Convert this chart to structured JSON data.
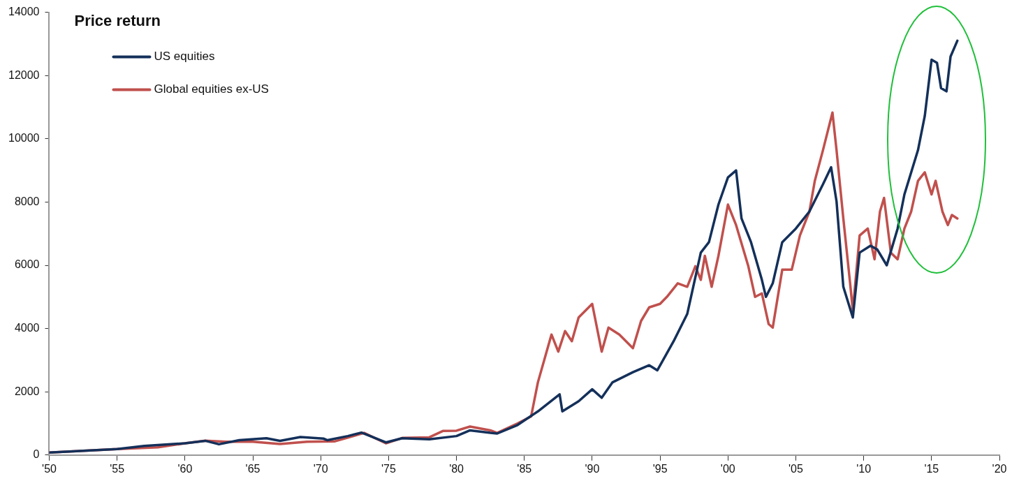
{
  "chart_data": {
    "type": "line",
    "title": "Price return",
    "legend": "top left",
    "grid": false,
    "marker": "none",
    "line_style": "solid",
    "xlim": [
      1950,
      2020
    ],
    "xticks": [
      {
        "value": 1950,
        "label": "'50"
      },
      {
        "value": 1955,
        "label": "'55"
      },
      {
        "value": 1960,
        "label": "'60"
      },
      {
        "value": 1965,
        "label": "'65"
      },
      {
        "value": 1970,
        "label": "'70"
      },
      {
        "value": 1975,
        "label": "'75"
      },
      {
        "value": 1980,
        "label": "'80"
      },
      {
        "value": 1985,
        "label": "'85"
      },
      {
        "value": 1990,
        "label": "'90"
      },
      {
        "value": 1995,
        "label": "'95"
      },
      {
        "value": 2000,
        "label": "'00"
      },
      {
        "value": 2005,
        "label": "'05"
      },
      {
        "value": 2010,
        "label": "'10"
      },
      {
        "value": 2015,
        "label": "'15"
      },
      {
        "value": 2020,
        "label": "'20"
      }
    ],
    "ylim": [
      0,
      14000
    ],
    "yticks": [
      0,
      2000,
      4000,
      6000,
      8000,
      10000,
      12000,
      14000
    ],
    "series": [
      {
        "name": "US equities",
        "color": "#14305a",
        "x": [
          1950,
          1955,
          1957,
          1960,
          1961.5,
          1962.5,
          1964,
          1966,
          1967,
          1968.5,
          1970.2,
          1970.5,
          1972,
          1973,
          1974.8,
          1976,
          1978,
          1980,
          1981,
          1982.5,
          1983,
          1984.5,
          1986,
          1987.6,
          1987.8,
          1989,
          1990,
          1990.7,
          1991.5,
          1993,
          1994.2,
          1994.8,
          1996,
          1997,
          1998,
          1998.6,
          1999.3,
          2000,
          2000.6,
          2001,
          2001.7,
          2002.5,
          2002.8,
          2003.3,
          2004,
          2005,
          2006,
          2007,
          2007.6,
          2008,
          2008.5,
          2009.2,
          2009.7,
          2010.5,
          2011,
          2011.7,
          2012.5,
          2013,
          2014,
          2014.5,
          2015,
          2015.4,
          2015.7,
          2016.1,
          2016.4,
          2016.9
        ],
        "values": [
          80,
          190,
          290,
          370,
          450,
          340,
          470,
          530,
          450,
          570,
          520,
          470,
          600,
          710,
          400,
          530,
          500,
          600,
          780,
          700,
          680,
          950,
          1380,
          1920,
          1380,
          1700,
          2080,
          1810,
          2300,
          2620,
          2840,
          2680,
          3600,
          4460,
          6400,
          6730,
          7920,
          8780,
          9000,
          7480,
          6730,
          5540,
          5000,
          5430,
          6730,
          7160,
          7700,
          8560,
          9100,
          8020,
          5320,
          4350,
          6400,
          6620,
          6500,
          6000,
          7160,
          8240,
          9640,
          10720,
          12500,
          12400,
          11600,
          11500,
          12600,
          13100
        ]
      },
      {
        "name": "Global equities ex-US",
        "color": "#c0504d",
        "x": [
          1950,
          1955,
          1958,
          1960,
          1961.5,
          1963,
          1965,
          1967,
          1969,
          1971,
          1973.2,
          1974.8,
          1976,
          1978,
          1979,
          1980,
          1981,
          1982.5,
          1983,
          1984.5,
          1985.5,
          1986,
          1987,
          1987.5,
          1988,
          1988.5,
          1989,
          1990,
          1990.7,
          1991.2,
          1992,
          1993,
          1993.6,
          1994.2,
          1995,
          1995.5,
          1996.3,
          1997,
          1997.6,
          1998,
          1998.3,
          1998.8,
          1999.3,
          2000,
          2000.6,
          2001.5,
          2002,
          2002.5,
          2003,
          2003.3,
          2004,
          2004.7,
          2005.3,
          2006,
          2006.4,
          2007,
          2007.7,
          2008,
          2008.5,
          2009,
          2009.2,
          2009.7,
          2010.3,
          2010.8,
          2011.2,
          2011.5,
          2012,
          2012.5,
          2013,
          2013.5,
          2014,
          2014.5,
          2015,
          2015.3,
          2015.8,
          2016.2,
          2016.5,
          2016.9
        ],
        "values": [
          80,
          190,
          245,
          370,
          455,
          420,
          420,
          350,
          420,
          430,
          700,
          370,
          540,
          560,
          760,
          770,
          900,
          780,
          700,
          1000,
          1220,
          2300,
          3810,
          3270,
          3920,
          3600,
          4350,
          4780,
          3270,
          4030,
          3810,
          3380,
          4240,
          4670,
          4780,
          5000,
          5430,
          5320,
          5970,
          5540,
          6300,
          5320,
          6300,
          7920,
          7270,
          5970,
          5000,
          5110,
          4140,
          4030,
          5860,
          5860,
          6940,
          7700,
          8670,
          9640,
          10830,
          9640,
          7480,
          5430,
          4570,
          6940,
          7160,
          6190,
          7700,
          8130,
          6400,
          6190,
          7160,
          7700,
          8670,
          8940,
          8240,
          8670,
          7700,
          7270,
          7590,
          7480
        ]
      }
    ]
  }
}
